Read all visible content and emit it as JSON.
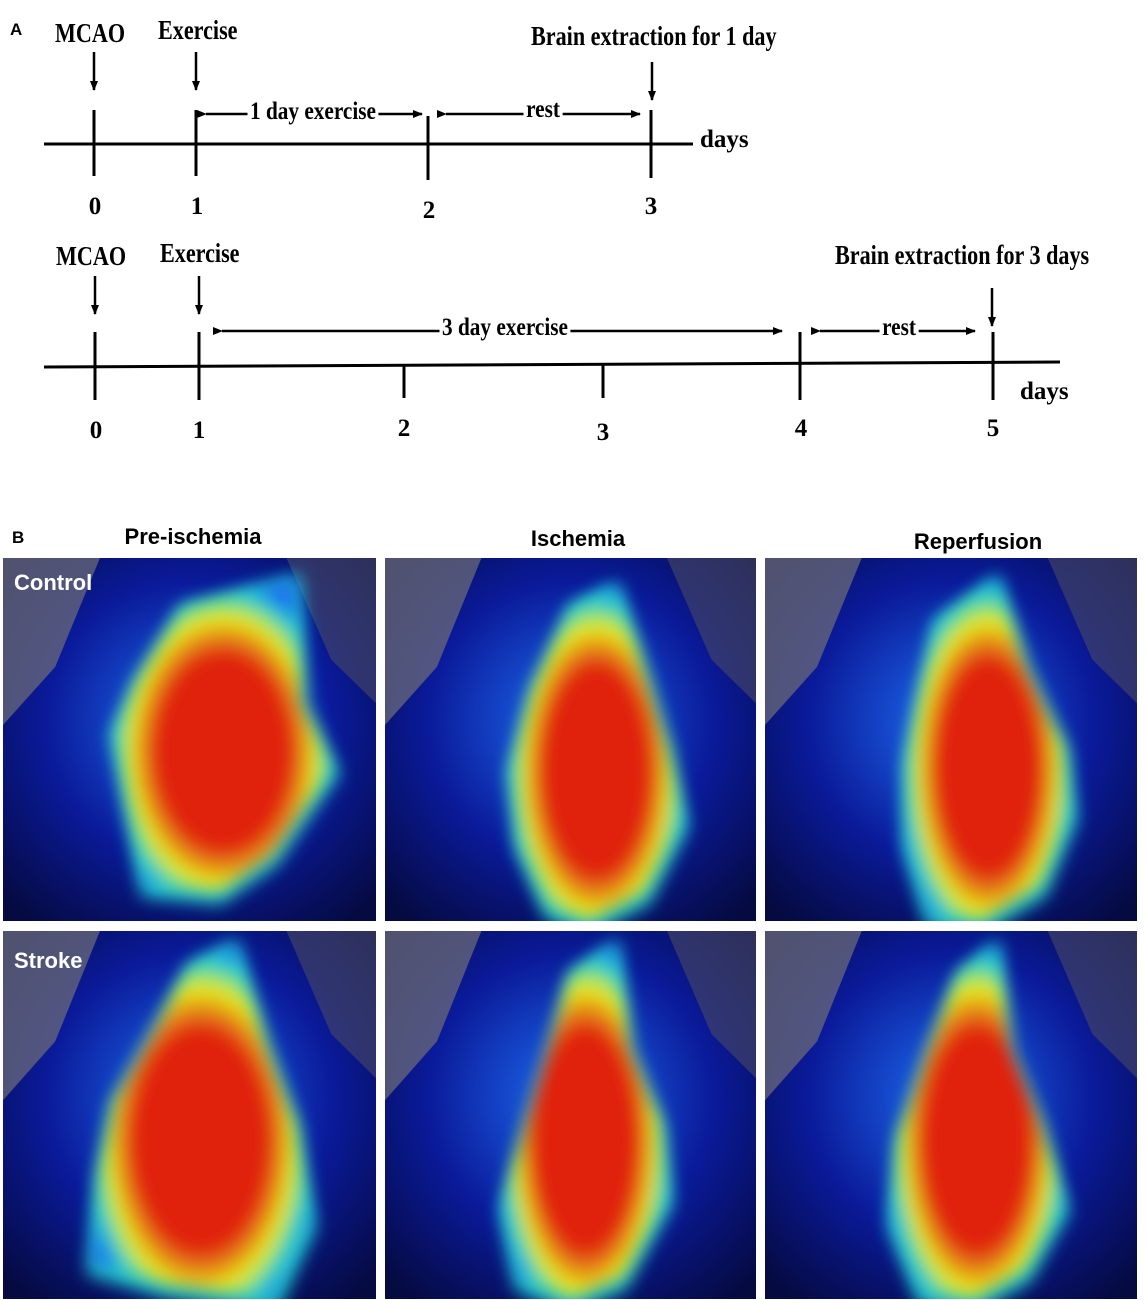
{
  "panel_a": {
    "letter": "A",
    "timeline_1": {
      "events": {
        "mcao": "MCAO",
        "exercise": "Exercise",
        "extraction": "Brain extraction for 1 day"
      },
      "units": "days",
      "ticks": [
        "0",
        "1",
        "2",
        "3"
      ],
      "spans": {
        "exercise": "1 day exercise",
        "rest": "rest"
      }
    },
    "timeline_2": {
      "events": {
        "mcao": "MCAO",
        "exercise": "Exercise",
        "extraction": "Brain extraction for 3 days"
      },
      "units": "days",
      "ticks": [
        "0",
        "1",
        "2",
        "3",
        "4",
        "5"
      ],
      "spans": {
        "exercise": "3 day exercise",
        "rest": "rest"
      }
    }
  },
  "panel_b": {
    "letter": "B",
    "columns": [
      "Pre-ischemia",
      "Ischemia",
      "Reperfusion"
    ],
    "rows": [
      "Control",
      "Stroke"
    ],
    "colors": {
      "low": "#0a1a9a",
      "mid_low": "#1e6cf0",
      "mid": "#22d0d0",
      "mid_high": "#e8ec1a",
      "high": "#e02010"
    }
  }
}
